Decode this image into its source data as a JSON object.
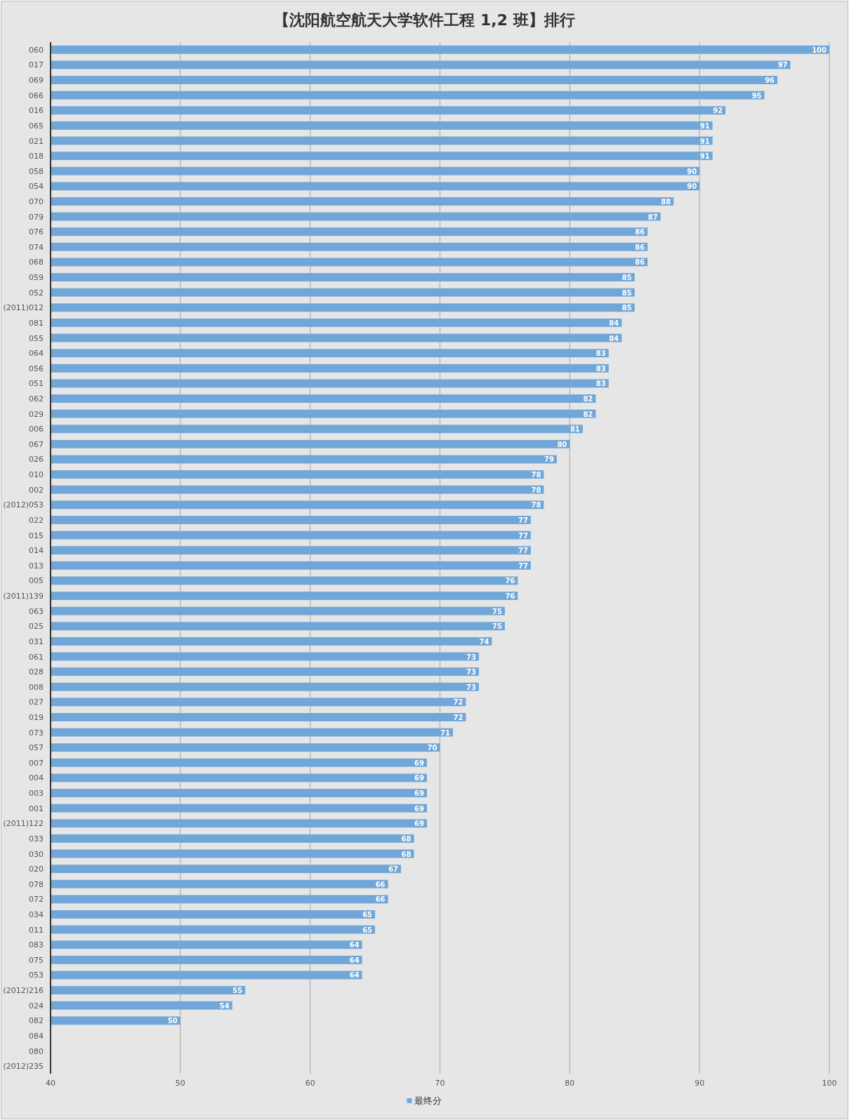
{
  "chart_data": {
    "type": "bar",
    "orientation": "horizontal",
    "title": "【沈阳航空航天大学软件工程 1,2 班】排行",
    "categories": [
      "060",
      "017",
      "069",
      "066",
      "016",
      "065",
      "021",
      "018",
      "058",
      "054",
      "070",
      "079",
      "076",
      "074",
      "068",
      "059",
      "052",
      "(2011)012",
      "081",
      "055",
      "064",
      "056",
      "051",
      "062",
      "029",
      "006",
      "067",
      "026",
      "010",
      "002",
      "(2012)053",
      "022",
      "015",
      "014",
      "013",
      "005",
      "(2011)139",
      "063",
      "025",
      "031",
      "061",
      "028",
      "008",
      "027",
      "019",
      "073",
      "057",
      "007",
      "004",
      "003",
      "001",
      "(2011)122",
      "033",
      "030",
      "020",
      "078",
      "072",
      "034",
      "011",
      "083",
      "075",
      "053",
      "(2012)216",
      "024",
      "082",
      "084",
      "080",
      "(2012)235"
    ],
    "series": [
      {
        "name": "最终分",
        "color": "#70a7d8",
        "values": [
          100,
          97,
          96,
          95,
          92,
          91,
          91,
          91,
          90,
          90,
          88,
          87,
          86,
          86,
          86,
          85,
          85,
          85,
          84,
          84,
          83,
          83,
          83,
          82,
          82,
          81,
          80,
          79,
          78,
          78,
          78,
          77,
          77,
          77,
          77,
          76,
          76,
          75,
          75,
          74,
          73,
          73,
          73,
          72,
          72,
          71,
          70,
          69,
          69,
          69,
          69,
          69,
          68,
          68,
          67,
          66,
          66,
          65,
          65,
          64,
          64,
          64,
          55,
          54,
          50,
          null,
          null,
          null
        ]
      }
    ],
    "xlim": [
      40,
      100
    ],
    "xticks": [
      40,
      50,
      60,
      70,
      80,
      90,
      100
    ],
    "grid": "x",
    "legend": "bottom",
    "data_labels": true
  }
}
